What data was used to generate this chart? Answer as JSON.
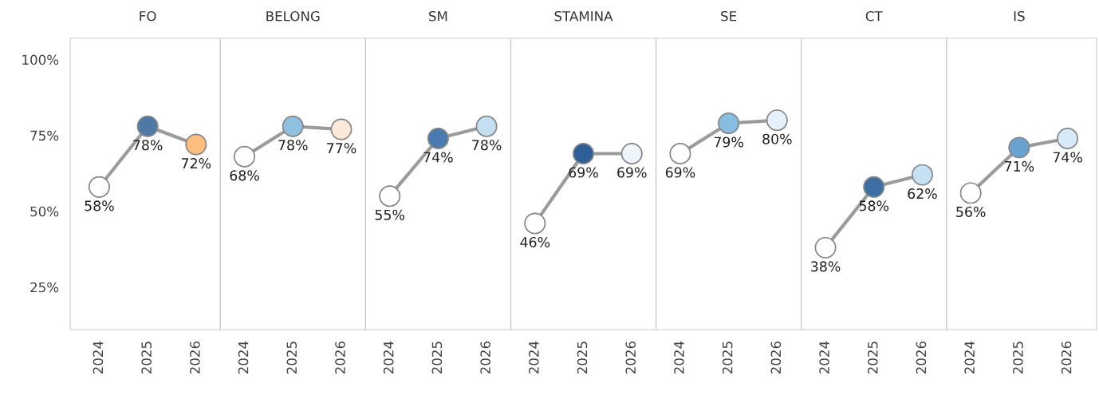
{
  "chart_data": {
    "type": "line",
    "categories": [
      "2024",
      "2025",
      "2026",
      "2024",
      "2025",
      "2026",
      "2024",
      "2025",
      "2026",
      "2024",
      "2025",
      "2026",
      "2024",
      "2025",
      "2026",
      "2024",
      "2025",
      "2026",
      "2024",
      "2025",
      "2026"
    ],
    "annotations": [
      "FO",
      "BELONG",
      "SM",
      "STAMINA",
      "SE",
      "CT",
      "IS"
    ],
    "ylim": [
      11,
      107
    ],
    "yticks": [
      {
        "value": 25,
        "label": "25%"
      },
      {
        "value": 50,
        "label": "50%"
      },
      {
        "value": 75,
        "label": "75%"
      },
      {
        "value": 100,
        "label": "100%"
      }
    ],
    "marker": "circle",
    "data_labels": true,
    "series": [
      {
        "color": "#9b9b9b",
        "colors": [
          "#ffffff",
          "#4e79a7",
          "#ffbe7d",
          null,
          null,
          null,
          null,
          null,
          null,
          null,
          null,
          null,
          null,
          null,
          null,
          null,
          null,
          null,
          null,
          null,
          null
        ],
        "values": [
          58,
          78,
          72,
          null,
          null,
          null,
          null,
          null,
          null,
          null,
          null,
          null,
          null,
          null,
          null,
          null,
          null,
          null,
          null,
          null,
          null
        ],
        "value_labels": [
          "58%",
          "78%",
          "72%",
          null,
          null,
          null,
          null,
          null,
          null,
          null,
          null,
          null,
          null,
          null,
          null,
          null,
          null,
          null,
          null,
          null,
          null
        ]
      },
      {
        "color": "#9b9b9b",
        "colors": [
          null,
          null,
          null,
          "#ffffff",
          "#8ec1e0",
          "#fde9da",
          null,
          null,
          null,
          null,
          null,
          null,
          null,
          null,
          null,
          null,
          null,
          null,
          null,
          null,
          null
        ],
        "values": [
          null,
          null,
          null,
          68,
          78,
          77,
          null,
          null,
          null,
          null,
          null,
          null,
          null,
          null,
          null,
          null,
          null,
          null,
          null,
          null,
          null
        ],
        "value_labels": [
          null,
          null,
          null,
          "68%",
          "78%",
          "77%",
          null,
          null,
          null,
          null,
          null,
          null,
          null,
          null,
          null,
          null,
          null,
          null,
          null,
          null,
          null
        ]
      },
      {
        "color": "#9b9b9b",
        "colors": [
          null,
          null,
          null,
          null,
          null,
          null,
          "#ffffff",
          "#4a7bb0",
          "#c5dff2",
          null,
          null,
          null,
          null,
          null,
          null,
          null,
          null,
          null,
          null,
          null,
          null
        ],
        "values": [
          null,
          null,
          null,
          null,
          null,
          null,
          55,
          74,
          78,
          null,
          null,
          null,
          null,
          null,
          null,
          null,
          null,
          null,
          null,
          null,
          null
        ],
        "value_labels": [
          null,
          null,
          null,
          null,
          null,
          null,
          "55%",
          "74%",
          "78%",
          null,
          null,
          null,
          null,
          null,
          null,
          null,
          null,
          null,
          null,
          null,
          null
        ]
      },
      {
        "color": "#9b9b9b",
        "colors": [
          null,
          null,
          null,
          null,
          null,
          null,
          null,
          null,
          null,
          "#ffffff",
          "#2f5f97",
          "#eef6fc",
          null,
          null,
          null,
          null,
          null,
          null,
          null,
          null,
          null
        ],
        "values": [
          null,
          null,
          null,
          null,
          null,
          null,
          null,
          null,
          null,
          46,
          69,
          69,
          null,
          null,
          null,
          null,
          null,
          null,
          null,
          null,
          null
        ],
        "value_labels": [
          null,
          null,
          null,
          null,
          null,
          null,
          null,
          null,
          null,
          "46%",
          "69%",
          "69%",
          null,
          null,
          null,
          null,
          null,
          null,
          null,
          null,
          null
        ]
      },
      {
        "color": "#9b9b9b",
        "colors": [
          null,
          null,
          null,
          null,
          null,
          null,
          null,
          null,
          null,
          null,
          null,
          null,
          "#ffffff",
          "#86bde0",
          "#e6f2fb",
          null,
          null,
          null,
          null,
          null,
          null
        ],
        "values": [
          null,
          null,
          null,
          null,
          null,
          null,
          null,
          null,
          null,
          null,
          null,
          null,
          69,
          79,
          80,
          null,
          null,
          null,
          null,
          null,
          null
        ],
        "value_labels": [
          null,
          null,
          null,
          null,
          null,
          null,
          null,
          null,
          null,
          null,
          null,
          null,
          "69%",
          "79%",
          "80%",
          null,
          null,
          null,
          null,
          null,
          null
        ]
      },
      {
        "color": "#9b9b9b",
        "colors": [
          null,
          null,
          null,
          null,
          null,
          null,
          null,
          null,
          null,
          null,
          null,
          null,
          null,
          null,
          null,
          "#ffffff",
          "#3d6fa5",
          "#c6e1f3",
          null,
          null,
          null
        ],
        "values": [
          null,
          null,
          null,
          null,
          null,
          null,
          null,
          null,
          null,
          null,
          null,
          null,
          null,
          null,
          null,
          38,
          58,
          62,
          null,
          null,
          null
        ],
        "value_labels": [
          null,
          null,
          null,
          null,
          null,
          null,
          null,
          null,
          null,
          null,
          null,
          null,
          null,
          null,
          null,
          "38%",
          "58%",
          "62%",
          null,
          null,
          null
        ]
      },
      {
        "color": "#9b9b9b",
        "colors": [
          null,
          null,
          null,
          null,
          null,
          null,
          null,
          null,
          null,
          null,
          null,
          null,
          null,
          null,
          null,
          null,
          null,
          null,
          "#ffffff",
          "#6aa2cf",
          "#d6eaf8"
        ],
        "values": [
          null,
          null,
          null,
          null,
          null,
          null,
          null,
          null,
          null,
          null,
          null,
          null,
          null,
          null,
          null,
          null,
          null,
          null,
          56,
          71,
          74
        ],
        "value_labels": [
          null,
          null,
          null,
          null,
          null,
          null,
          null,
          null,
          null,
          null,
          null,
          null,
          null,
          null,
          null,
          null,
          null,
          null,
          "56%",
          "71%",
          "74%"
        ]
      }
    ]
  }
}
